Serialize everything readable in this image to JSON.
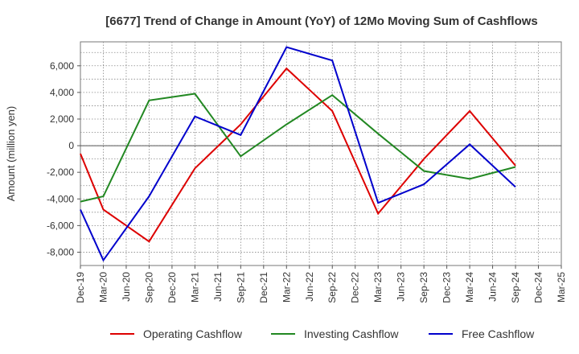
{
  "chart_data": {
    "type": "line",
    "title": "[6677]  Trend of Change in Amount (YoY) of 12Mo Moving Sum of Cashflows",
    "xlabel": "",
    "ylabel": "Amount (million yen)",
    "ylim": [
      -9000,
      7800
    ],
    "yticks": [
      6000,
      4000,
      2000,
      0,
      -2000,
      -4000,
      -6000,
      -8000
    ],
    "ytick_labels": [
      "6,000",
      "4,000",
      "2,000",
      "0",
      "-2,000",
      "-4,000",
      "-6,000",
      "-8,000"
    ],
    "categories": [
      "Dec-19",
      "Mar-20",
      "Jun-20",
      "Sep-20",
      "Dec-20",
      "Mar-21",
      "Jun-21",
      "Sep-21",
      "Dec-21",
      "Mar-22",
      "Jun-22",
      "Sep-22",
      "Dec-22",
      "Mar-23",
      "Jun-23",
      "Sep-23",
      "Dec-23",
      "Mar-24",
      "Jun-24",
      "Sep-24",
      "Dec-24",
      "Mar-25"
    ],
    "grid": true,
    "legend_position": "bottom",
    "series": [
      {
        "name": "Operating Cashflow",
        "color": "#dd0000",
        "values": [
          -600,
          -4800,
          null,
          -7200,
          null,
          -1700,
          null,
          1600,
          null,
          5800,
          null,
          2600,
          null,
          -5100,
          null,
          -1000,
          null,
          2600,
          null,
          -1500,
          null,
          null
        ]
      },
      {
        "name": "Investing Cashflow",
        "color": "#228822",
        "values": [
          -4200,
          -3800,
          null,
          3400,
          null,
          3900,
          null,
          -800,
          null,
          1600,
          null,
          3800,
          null,
          900,
          null,
          -1900,
          null,
          -2500,
          null,
          -1600,
          null,
          null
        ]
      },
      {
        "name": "Free Cashflow",
        "color": "#0000cc",
        "values": [
          -4800,
          -8600,
          null,
          -3800,
          null,
          2200,
          null,
          800,
          null,
          7400,
          null,
          6400,
          null,
          -4300,
          null,
          -2900,
          null,
          100,
          null,
          -3100,
          null,
          null
        ]
      }
    ]
  }
}
